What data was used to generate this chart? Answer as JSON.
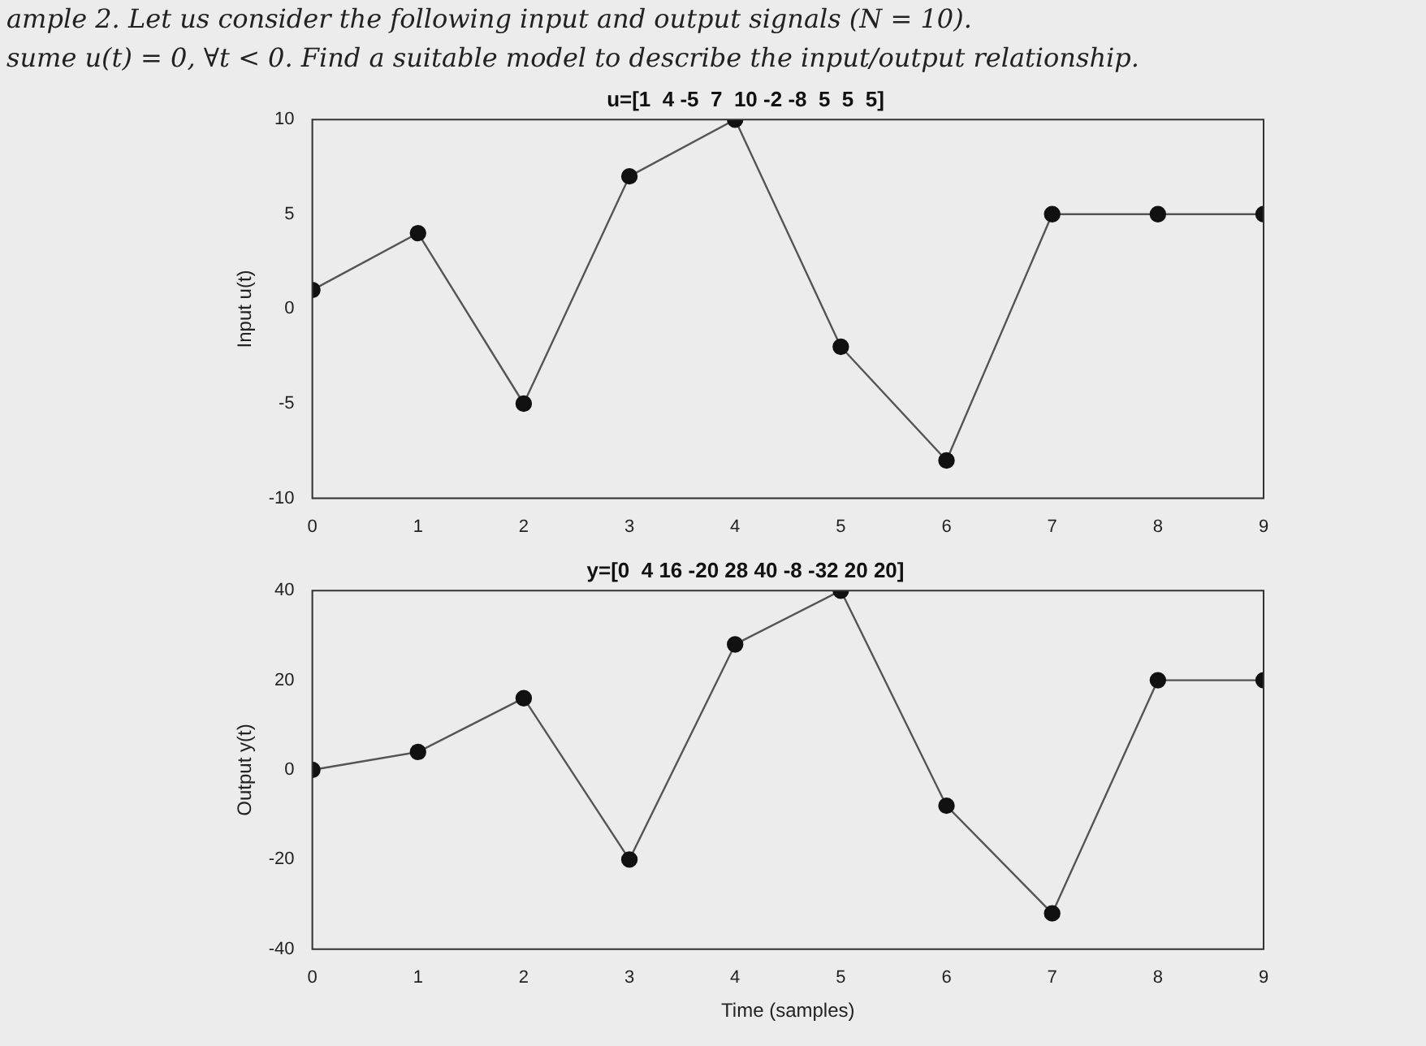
{
  "chart_data": [
    {
      "type": "line",
      "title": "u=[1  4 -5  7  10 -2 -8  5  5  5]",
      "ylabel": "Input u(t)",
      "annotations": [
        "ample 2. Let us consider the following input and output signals (N = 10).",
        "sume u(t) = 0, ∀t < 0. Find a suitable model to describe the input/output relationship."
      ],
      "x": [
        0,
        1,
        2,
        3,
        4,
        5,
        6,
        7,
        8,
        9
      ],
      "series": [
        {
          "color": "#555555",
          "values": [
            1,
            4,
            -5,
            7,
            10,
            -2,
            -8,
            5,
            5,
            5
          ]
        }
      ],
      "xlim": [
        0,
        9
      ],
      "xticks": [
        0,
        1,
        2,
        3,
        4,
        5,
        6,
        7,
        8,
        9
      ],
      "ylim": [
        -10,
        10
      ],
      "yticks": [
        -10,
        -5,
        0,
        5,
        10
      ],
      "grid": false,
      "legend": false,
      "marker": "circle",
      "line_style": "solid"
    },
    {
      "type": "line",
      "title": "y=[0  4 16 -20 28 40 -8 -32 20 20]",
      "xlabel": "Time (samples)",
      "ylabel": "Output y(t)",
      "x": [
        0,
        1,
        2,
        3,
        4,
        5,
        6,
        7,
        8,
        9
      ],
      "series": [
        {
          "color": "#555555",
          "values": [
            0,
            4,
            16,
            -20,
            28,
            40,
            -8,
            -32,
            20,
            20
          ]
        }
      ],
      "xlim": [
        0,
        9
      ],
      "xticks": [
        0,
        1,
        2,
        3,
        4,
        5,
        6,
        7,
        8,
        9
      ],
      "ylim": [
        -40,
        40
      ],
      "yticks": [
        -40,
        -20,
        0,
        20,
        40
      ],
      "grid": false,
      "legend": false,
      "marker": "circle",
      "line_style": "solid"
    }
  ]
}
